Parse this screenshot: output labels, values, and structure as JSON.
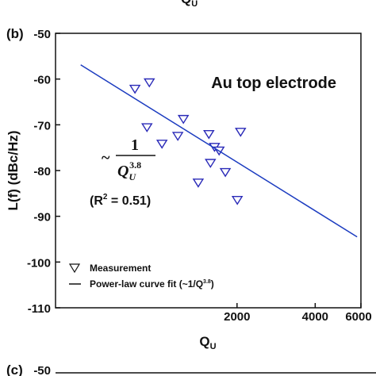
{
  "chart_data": {
    "type": "scatter",
    "panel_label": "(b)",
    "annotation": "Au top electrode",
    "formula": {
      "prefix": "~",
      "numerator": "1",
      "denominator": "Q",
      "denominator_sub": "U",
      "denominator_sup": "3.8"
    },
    "r_squared": {
      "prefix": "(R",
      "sup": "2",
      "suffix": " = 0.51)"
    },
    "x_label": "Q",
    "x_label_sub": "U",
    "y_label": "L(f) (dBc/Hz)",
    "log_x": true,
    "xlim": [
      400,
      6000
    ],
    "xticks": [
      2000,
      4000,
      6000
    ],
    "ylim": [
      -110,
      -50
    ],
    "yticks": [
      -50,
      -60,
      -70,
      -80,
      -90,
      -100,
      -110
    ],
    "legend": "lower left",
    "series": [
      {
        "name": "Measurement",
        "color": "#2a2ab8",
        "marker": "triangle-down",
        "x": [
          809,
          919,
          900,
          1028,
          1183,
          1243,
          1418,
          1558,
          1638,
          1706,
          1580,
          1803,
          2064,
          2005
        ],
        "values": [
          -62.1,
          -60.7,
          -70.5,
          -74.1,
          -72.4,
          -68.7,
          -82.6,
          -72.0,
          -74.8,
          -75.6,
          -78.3,
          -80.3,
          -71.5,
          -86.4
        ]
      },
      {
        "name": "Power-law curve fit (~1/Q",
        "name_sup": "3.8",
        "name_suffix": ")",
        "color": "#1c3cc0",
        "marker": "line",
        "x": [
          500,
          5800
        ],
        "values": [
          -56.9,
          -94.5
        ]
      }
    ],
    "fragments": {
      "top_label": "Q",
      "top_label_sub": "U",
      "next_panel_label": "(c)",
      "next_panel_tick": -50
    }
  }
}
